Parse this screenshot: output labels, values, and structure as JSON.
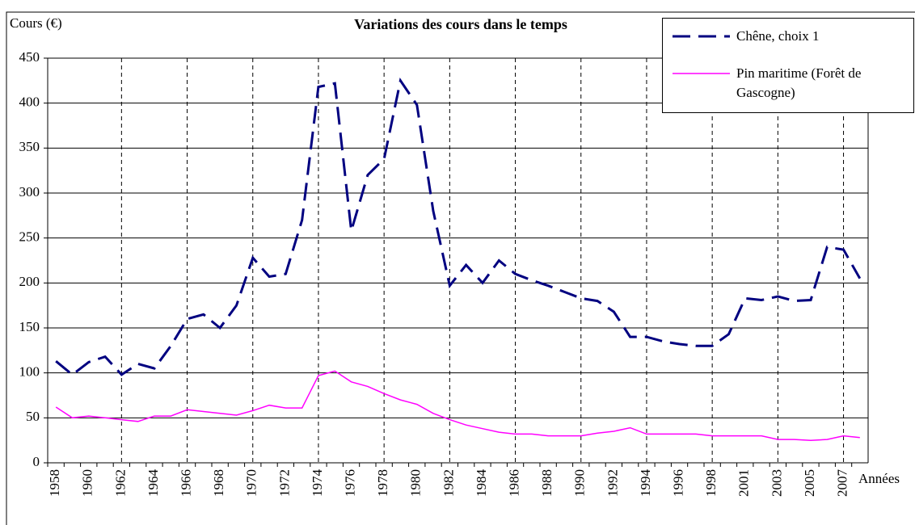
{
  "chart_data": {
    "type": "line",
    "title": "Variations des cours dans le temps",
    "y_label": "Cours (€)",
    "x_label": "Années",
    "categories": [
      "1958",
      null,
      "1960",
      null,
      "1962",
      null,
      "1964",
      null,
      "1966",
      null,
      "1968",
      null,
      "1970",
      null,
      "1972",
      null,
      "1974",
      null,
      "1976",
      null,
      "1978",
      null,
      "1980",
      null,
      "1982",
      null,
      "1984",
      null,
      "1986",
      null,
      "1988",
      null,
      "1990",
      null,
      "1992",
      null,
      "1994",
      null,
      "1996",
      null,
      "1998",
      null,
      "2001",
      null,
      "2003",
      null,
      "2005",
      null,
      "2007",
      null
    ],
    "series": [
      {
        "name": "Chêne, choix 1",
        "color": "#000080",
        "dashed": true,
        "values": [
          113,
          98,
          112,
          118,
          98,
          110,
          105,
          130,
          160,
          165,
          150,
          175,
          228,
          207,
          210,
          270,
          418,
          422,
          258,
          320,
          338,
          425,
          398,
          280,
          197,
          220,
          200,
          225,
          210,
          203,
          197,
          190,
          183,
          180,
          168,
          140,
          140,
          135,
          132,
          130,
          130,
          143,
          183,
          181,
          185,
          180,
          181,
          240,
          237,
          205
        ]
      },
      {
        "name": "Pin maritime (Forêt de Gascogne)",
        "color": "#ff00ff",
        "dashed": false,
        "values": [
          62,
          50,
          52,
          50,
          48,
          46,
          52,
          52,
          59,
          57,
          55,
          53,
          58,
          64,
          61,
          61,
          97,
          102,
          90,
          85,
          77,
          70,
          65,
          55,
          48,
          42,
          38,
          34,
          32,
          32,
          30,
          30,
          30,
          33,
          35,
          39,
          32,
          32,
          32,
          32,
          30,
          30,
          30,
          30,
          26,
          26,
          25,
          26,
          30,
          28
        ]
      }
    ],
    "ylim": [
      0,
      450
    ],
    "yticks": [
      0,
      50,
      100,
      150,
      200,
      250,
      300,
      350,
      400,
      450
    ],
    "grid": true,
    "legend": "top-right"
  }
}
